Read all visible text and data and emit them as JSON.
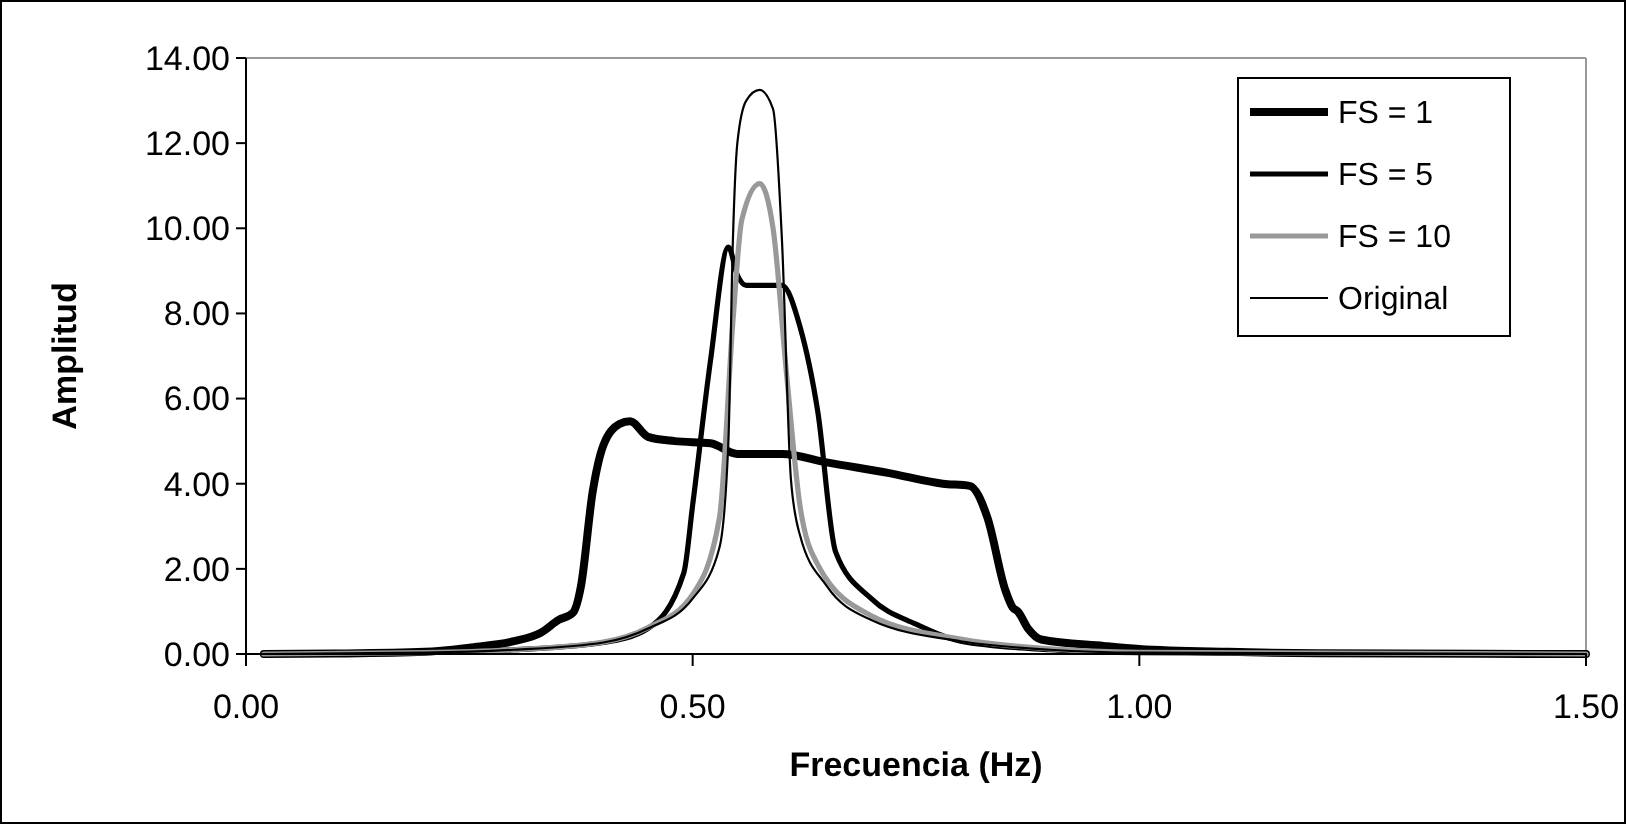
{
  "chart_data": {
    "type": "line",
    "xlabel": "Frecuencia (Hz)",
    "ylabel": "Amplitud",
    "xlim": [
      0,
      1.5
    ],
    "xticks": [
      {
        "value": 0,
        "label": "0.00"
      },
      {
        "value": 0.5,
        "label": "0.50"
      },
      {
        "value": 1,
        "label": "1.00"
      },
      {
        "value": 1.5,
        "label": "1.50"
      }
    ],
    "ylim": [
      0,
      14
    ],
    "yticks": [
      {
        "value": 0,
        "label": "0.00"
      },
      {
        "value": 2,
        "label": "2.00"
      },
      {
        "value": 4,
        "label": "4.00"
      },
      {
        "value": 6,
        "label": "6.00"
      },
      {
        "value": 8,
        "label": "8.00"
      },
      {
        "value": 10,
        "label": "10.00"
      },
      {
        "value": 12,
        "label": "12.00"
      },
      {
        "value": 14,
        "label": "14.00"
      }
    ],
    "grid": false,
    "legend": "top right",
    "marker": "none",
    "line_style": "solid",
    "series": [
      {
        "name": "FS = 1",
        "color": "#000000",
        "x": [
          0.02,
          0.1,
          0.2,
          0.25,
          0.3,
          0.33,
          0.35,
          0.366,
          0.375,
          0.388,
          0.4,
          0.418,
          0.43,
          0.45,
          0.48,
          0.52,
          0.55,
          0.6,
          0.65,
          0.72,
          0.78,
          0.81,
          0.83,
          0.85,
          0.858,
          0.864,
          0.876,
          0.89,
          0.96,
          1.0,
          1.1,
          1.2,
          1.5
        ],
        "values": [
          0,
          0.01,
          0.05,
          0.15,
          0.3,
          0.5,
          0.8,
          0.97,
          1.6,
          3.8,
          4.9,
          5.4,
          5.47,
          5.1,
          5.0,
          4.95,
          4.7,
          4.7,
          4.5,
          4.25,
          4.0,
          3.95,
          3.2,
          1.5,
          1.1,
          1.0,
          0.58,
          0.34,
          0.19,
          0.12,
          0.05,
          0.02,
          0
        ]
      },
      {
        "name": "FS = 5",
        "color": "#000000",
        "x": [
          0.02,
          0.2,
          0.3,
          0.4,
          0.45,
          0.49,
          0.5,
          0.52,
          0.54,
          0.55,
          0.56,
          0.6,
          0.62,
          0.64,
          0.66,
          0.7,
          0.75,
          0.8,
          0.9,
          1.0,
          1.5
        ],
        "values": [
          0,
          0.03,
          0.1,
          0.27,
          0.6,
          1.9,
          3.5,
          6.9,
          9.56,
          8.9,
          8.66,
          8.66,
          7.7,
          5.7,
          2.4,
          1.3,
          0.7,
          0.3,
          0.1,
          0.03,
          0
        ]
      },
      {
        "name": "FS = 10",
        "color": "#999999",
        "x": [
          0.02,
          0.2,
          0.3,
          0.4,
          0.45,
          0.5,
          0.53,
          0.545,
          0.555,
          0.575,
          0.59,
          0.605,
          0.62,
          0.64,
          0.7,
          0.8,
          0.9,
          1.0,
          1.5
        ],
        "values": [
          0,
          0.03,
          0.1,
          0.28,
          0.62,
          1.4,
          3.2,
          7.8,
          10.2,
          11.05,
          10.0,
          6.6,
          3.5,
          2.1,
          0.9,
          0.35,
          0.12,
          0.04,
          0
        ]
      },
      {
        "name": "Original",
        "color": "#000000",
        "x": [
          0.02,
          0.2,
          0.3,
          0.4,
          0.45,
          0.5,
          0.53,
          0.54,
          0.545,
          0.55,
          0.56,
          0.575,
          0.59,
          0.6,
          0.61,
          0.62,
          0.65,
          0.7,
          0.8,
          0.9,
          1.0,
          1.5
        ],
        "values": [
          0,
          0.03,
          0.1,
          0.27,
          0.6,
          1.3,
          2.5,
          5.0,
          9.7,
          12.0,
          13.0,
          13.25,
          12.8,
          9.7,
          4.1,
          2.8,
          1.6,
          0.8,
          0.3,
          0.1,
          0.03,
          0
        ]
      }
    ]
  }
}
